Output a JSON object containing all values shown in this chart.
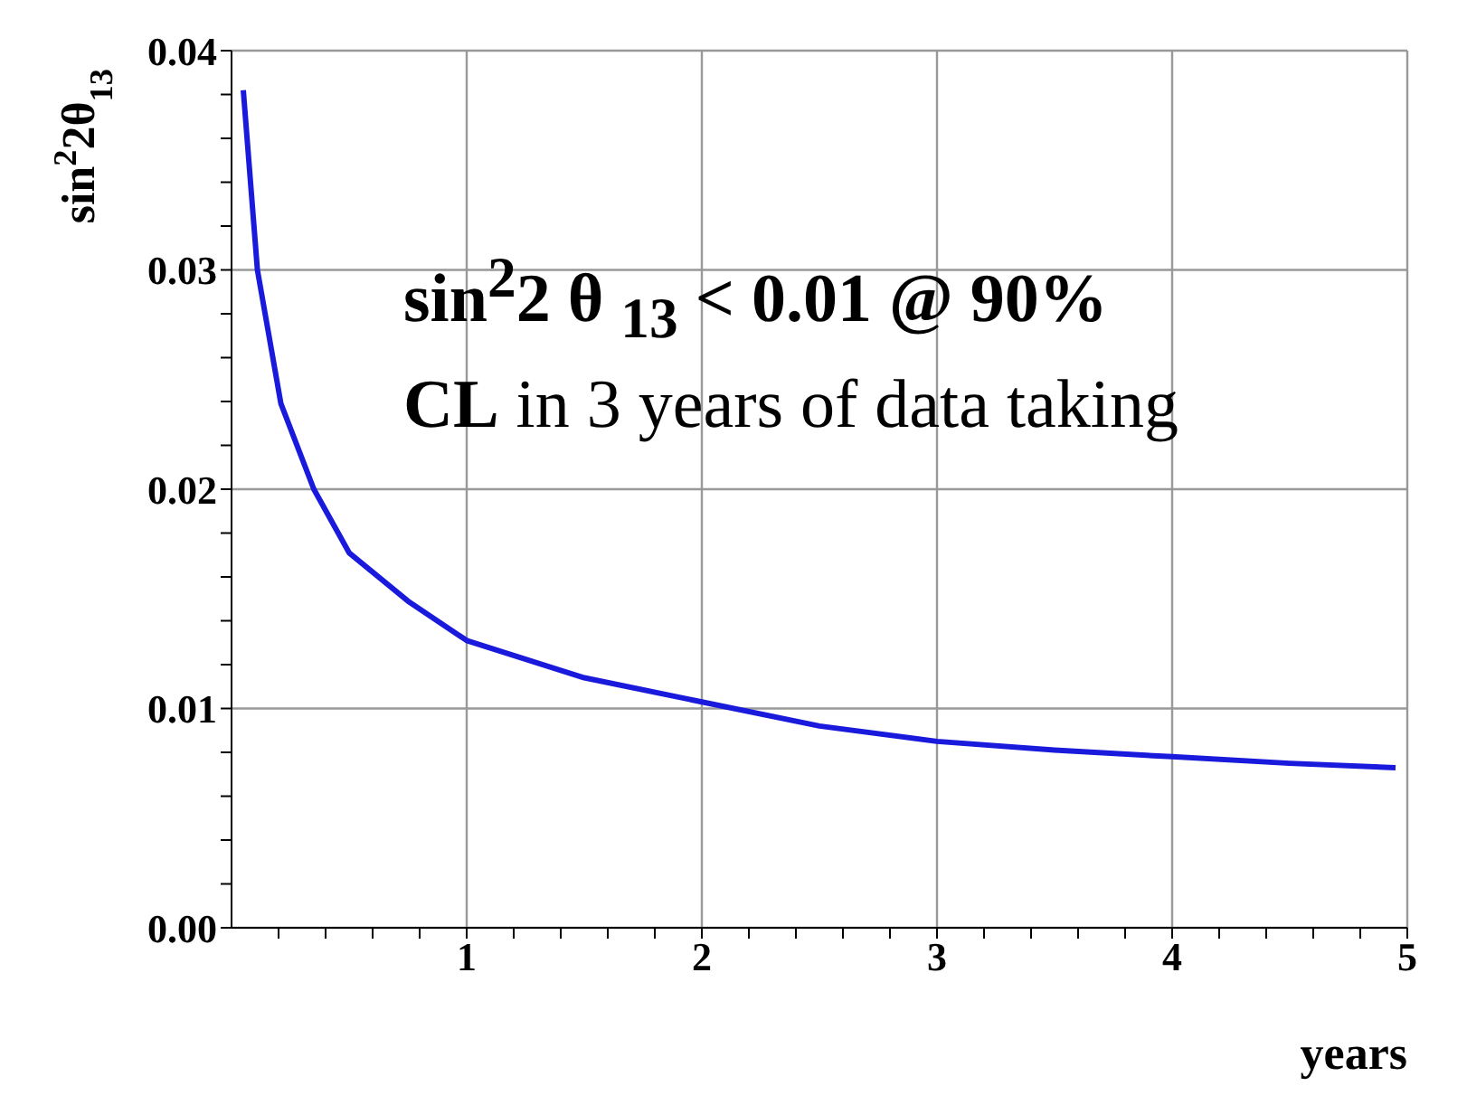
{
  "chart_data": {
    "type": "line",
    "xlabel": "years",
    "ylabel": "sin$^{2}$2θ$_{13}$",
    "annotations": [
      "sin$^{2}$2 θ $_{13}$ < 0.01 @ 90%",
      "CL in 3 years of data taking"
    ],
    "x": [
      0.05,
      0.11,
      0.21,
      0.35,
      0.5,
      0.75,
      1,
      1.5,
      2,
      2.5,
      3,
      3.5,
      4,
      4.5,
      4.95
    ],
    "series": [
      {
        "color": "#1a1adc",
        "values": [
          0.0382,
          0.03,
          0.0239,
          0.02,
          0.0171,
          0.0149,
          0.0131,
          0.0114,
          0.0103,
          0.0092,
          0.0085,
          0.0081,
          0.0078,
          0.0075,
          0.0073
        ]
      }
    ],
    "xlim": [
      0,
      5
    ],
    "ylim": [
      0,
      0.04
    ],
    "xticks": [
      {
        "value": 0.2,
        "label": null
      },
      {
        "value": 0.4,
        "label": null
      },
      {
        "value": 0.6,
        "label": null
      },
      {
        "value": 0.8,
        "label": null
      },
      1,
      {
        "value": 1.2,
        "label": null
      },
      {
        "value": 1.4,
        "label": null
      },
      {
        "value": 1.6,
        "label": null
      },
      {
        "value": 1.8,
        "label": null
      },
      2,
      {
        "value": 2.2,
        "label": null
      },
      {
        "value": 2.4,
        "label": null
      },
      {
        "value": 2.6,
        "label": null
      },
      {
        "value": 2.8,
        "label": null
      },
      3,
      {
        "value": 3.2,
        "label": null
      },
      {
        "value": 3.4,
        "label": null
      },
      {
        "value": 3.6,
        "label": null
      },
      {
        "value": 3.8,
        "label": null
      },
      4,
      {
        "value": 4.2,
        "label": null
      },
      {
        "value": 4.4,
        "label": null
      },
      {
        "value": 4.6,
        "label": null
      },
      {
        "value": 4.8,
        "label": null
      },
      5
    ],
    "yticks": [
      {
        "value": 0,
        "label": "0.00"
      },
      {
        "value": 0.002,
        "label": null
      },
      {
        "value": 0.004,
        "label": null
      },
      {
        "value": 0.006,
        "label": null
      },
      {
        "value": 0.008,
        "label": null
      },
      0.01,
      {
        "value": 0.012,
        "label": null
      },
      {
        "value": 0.014,
        "label": null
      },
      {
        "value": 0.016,
        "label": null
      },
      {
        "value": 0.018,
        "label": null
      },
      0.02,
      {
        "value": 0.022,
        "label": null
      },
      {
        "value": 0.024,
        "label": null
      },
      {
        "value": 0.026,
        "label": null
      },
      {
        "value": 0.028,
        "label": null
      },
      0.03,
      {
        "value": 0.032,
        "label": null
      },
      {
        "value": 0.034,
        "label": null
      },
      {
        "value": 0.036,
        "label": null
      },
      {
        "value": 0.038,
        "label": null
      },
      0.04
    ],
    "grid": true,
    "marker": "none",
    "line_style": "solid"
  }
}
